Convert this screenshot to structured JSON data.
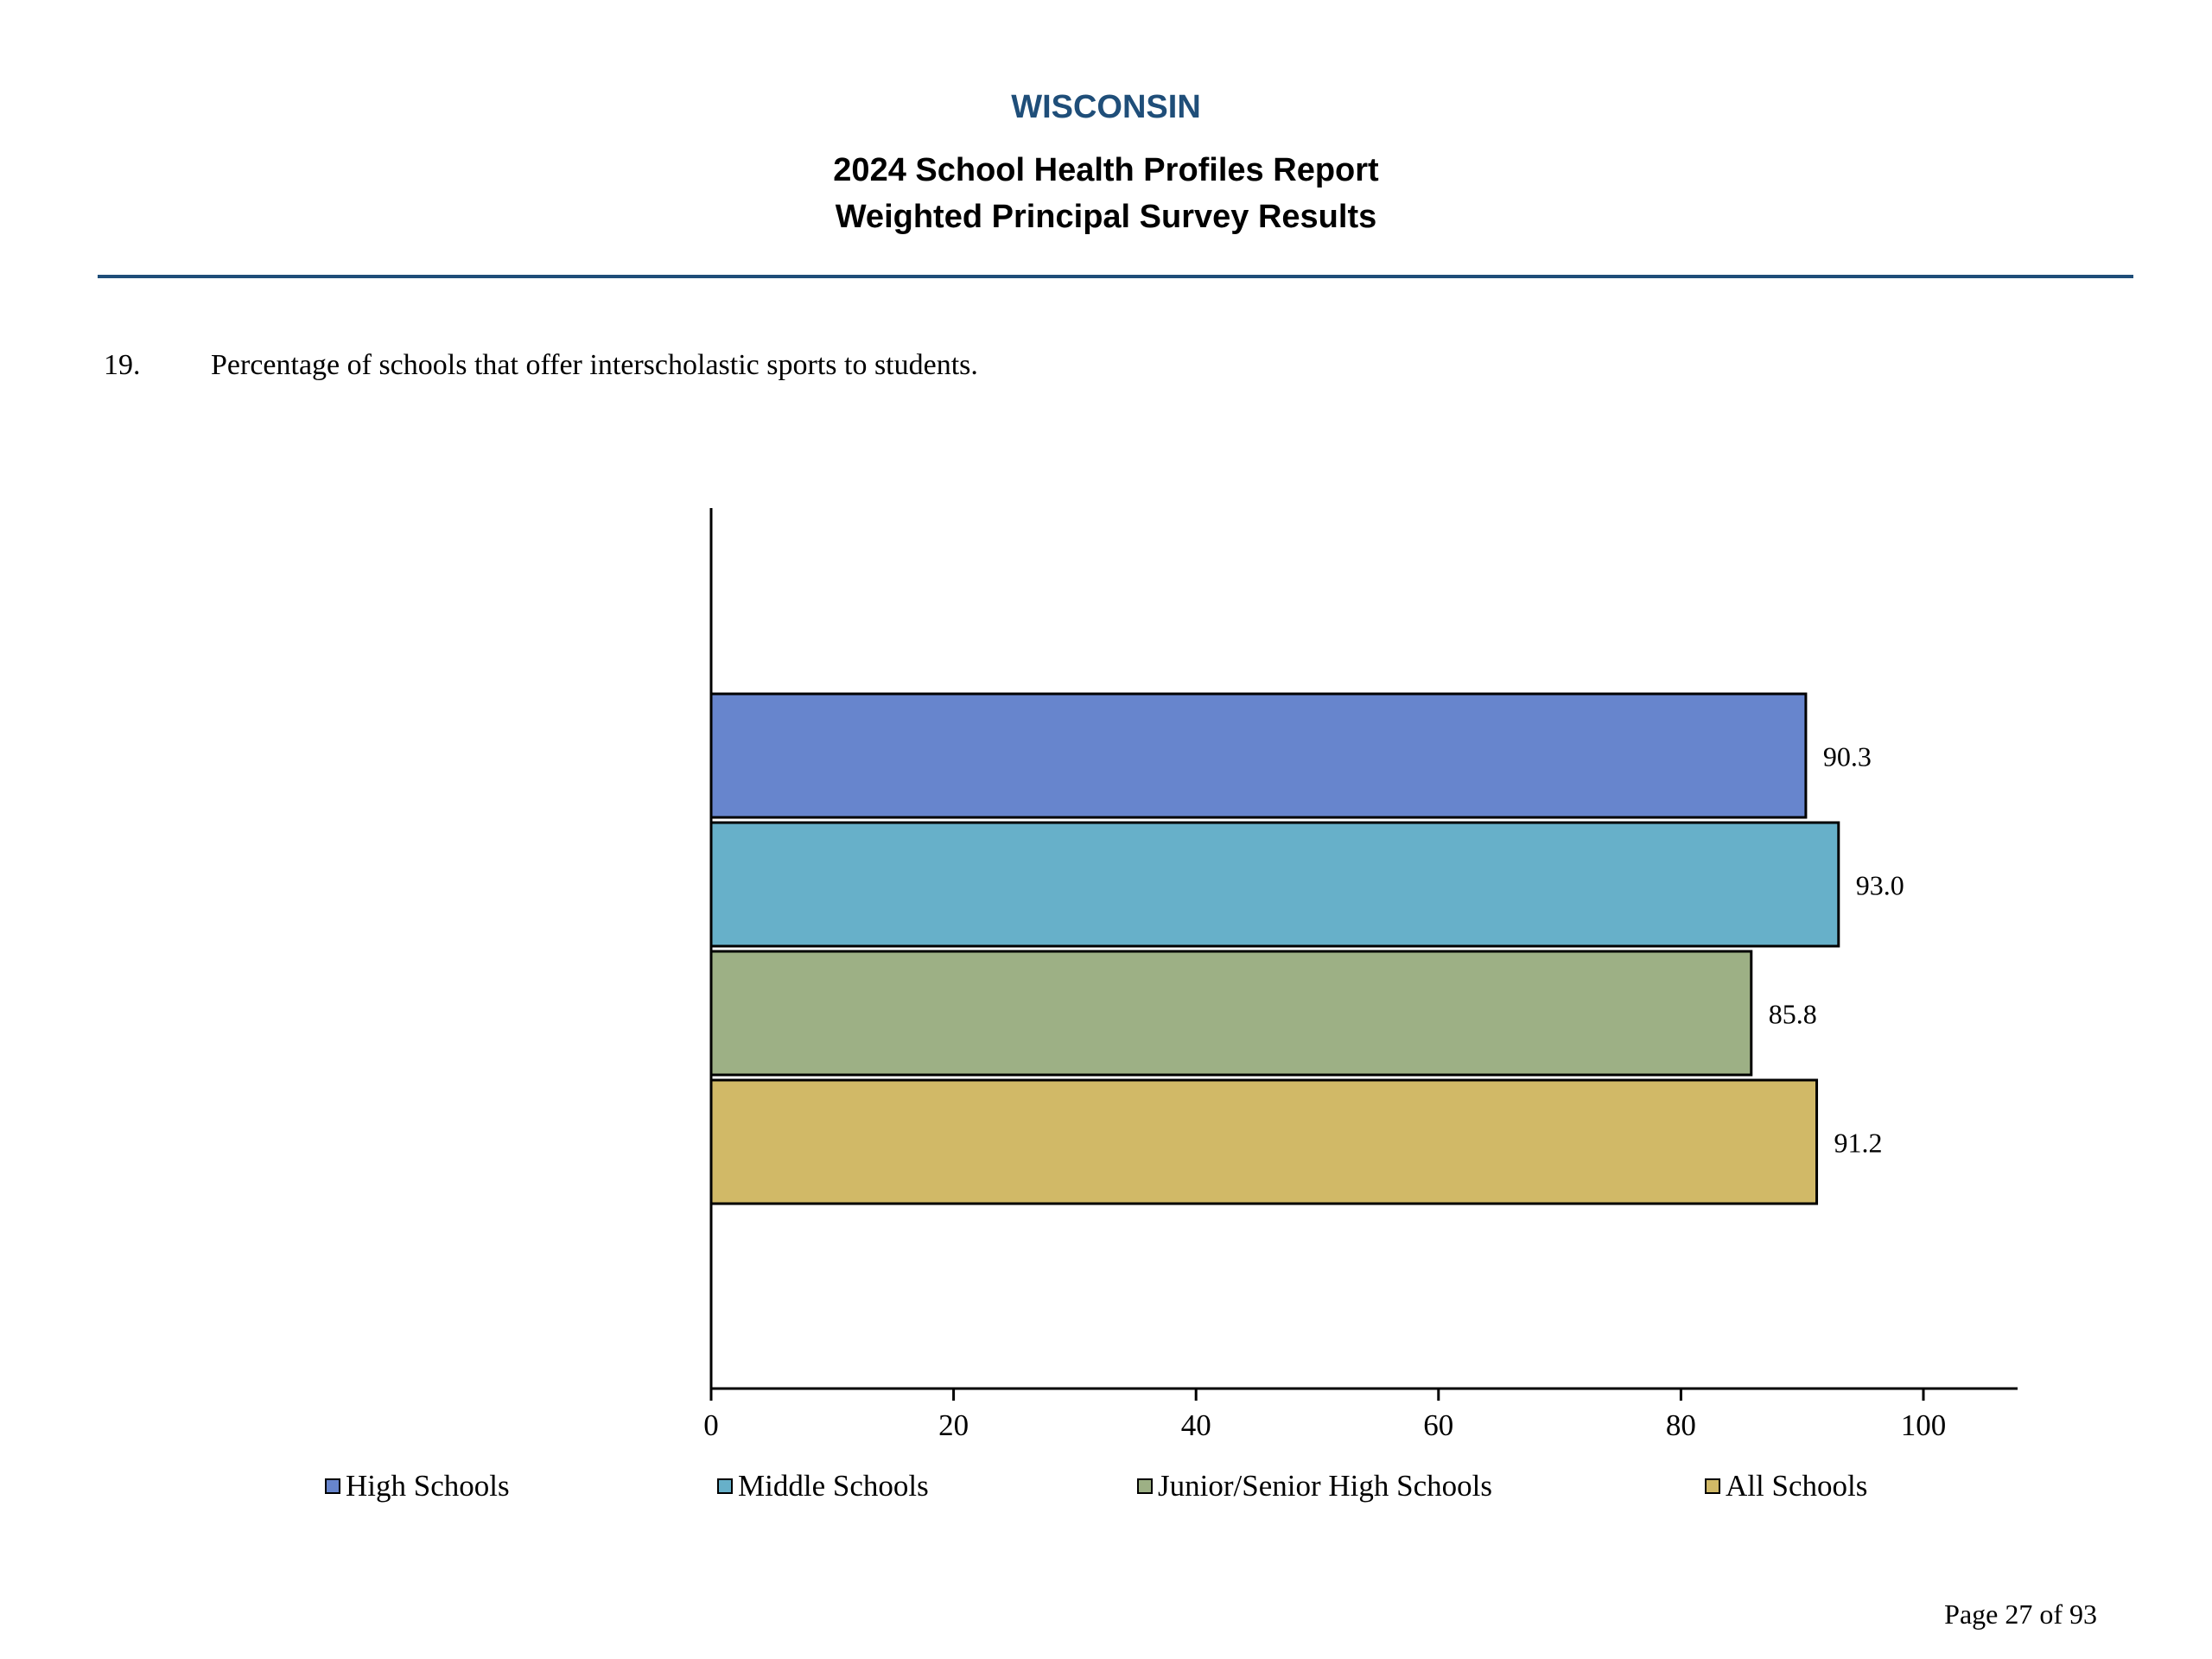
{
  "header": {
    "state": "WISCONSIN",
    "title_line1": "2024 School Health Profiles Report",
    "title_line2": "Weighted Principal Survey Results"
  },
  "question": {
    "number": "19.",
    "text": "Percentage of schools that offer interscholastic sports to students."
  },
  "chart_data": {
    "type": "bar",
    "orientation": "horizontal",
    "categories": [
      "High Schools",
      "Middle Schools",
      "Junior/Senior High Schools",
      "All Schools"
    ],
    "values": [
      90.3,
      93.0,
      85.8,
      91.2
    ],
    "value_labels": [
      "90.3",
      "93.0",
      "85.8",
      "91.2"
    ],
    "colors": [
      "#6785cd",
      "#67b0c9",
      "#9db085",
      "#d1b967"
    ],
    "xlim": [
      0,
      100
    ],
    "xticks": [
      "0",
      "20",
      "40",
      "60",
      "80",
      "100"
    ],
    "legend_position": "bottom",
    "grid": false
  },
  "footer": {
    "page": "Page 27 of 93"
  }
}
